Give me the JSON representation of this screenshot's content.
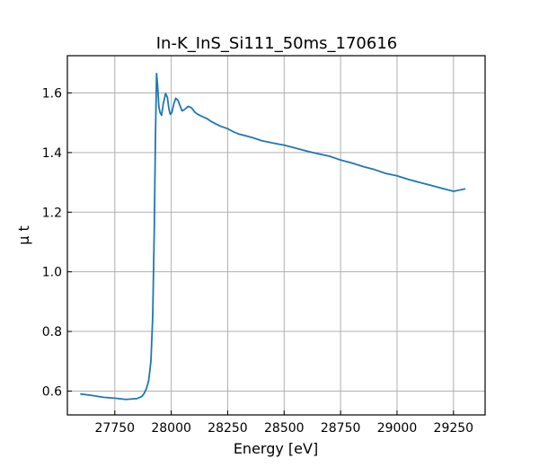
{
  "chart_data": {
    "type": "line",
    "title": "In-K_InS_Si111_50ms_170616",
    "xlabel": "Energy [eV]",
    "ylabel": "μ t",
    "xlim": [
      27540,
      29390
    ],
    "ylim": [
      0.52,
      1.725
    ],
    "xticks": [
      27750,
      28000,
      28250,
      28500,
      28750,
      29000,
      29250
    ],
    "yticks": [
      0.6,
      0.8,
      1.0,
      1.2,
      1.4,
      1.6
    ],
    "xtick_labels": [
      "27750",
      "28000",
      "28250",
      "28500",
      "28750",
      "29000",
      "29250"
    ],
    "ytick_labels": [
      "0.6",
      "0.8",
      "1.0",
      "1.2",
      "1.4",
      "1.6"
    ],
    "grid": true,
    "color": "#1f77b4",
    "series": [
      {
        "x": [
          27600,
          27650,
          27700,
          27750,
          27800,
          27850,
          27870,
          27880,
          27890,
          27900,
          27910,
          27918,
          27925,
          27930,
          27935,
          27940,
          27945,
          27950,
          27957,
          27965,
          27975,
          27983,
          27990,
          27996,
          28003,
          28012,
          28020,
          28030,
          28040,
          28048,
          28060,
          28075,
          28090,
          28105,
          28120,
          28140,
          28160,
          28180,
          28200,
          28220,
          28250,
          28275,
          28300,
          28330,
          28360,
          28400,
          28450,
          28500,
          28550,
          28600,
          28650,
          28700,
          28750,
          28800,
          28850,
          28900,
          28950,
          29000,
          29050,
          29100,
          29150,
          29200,
          29250,
          29300
        ],
        "y": [
          0.59,
          0.585,
          0.579,
          0.576,
          0.572,
          0.575,
          0.582,
          0.592,
          0.608,
          0.635,
          0.7,
          0.85,
          1.15,
          1.45,
          1.665,
          1.62,
          1.555,
          1.535,
          1.525,
          1.565,
          1.598,
          1.585,
          1.545,
          1.528,
          1.535,
          1.565,
          1.582,
          1.575,
          1.555,
          1.54,
          1.545,
          1.555,
          1.55,
          1.535,
          1.527,
          1.52,
          1.513,
          1.503,
          1.495,
          1.488,
          1.48,
          1.47,
          1.462,
          1.456,
          1.45,
          1.44,
          1.432,
          1.425,
          1.415,
          1.405,
          1.396,
          1.388,
          1.375,
          1.365,
          1.353,
          1.343,
          1.33,
          1.322,
          1.31,
          1.3,
          1.29,
          1.28,
          1.27,
          1.278
        ]
      }
    ]
  }
}
